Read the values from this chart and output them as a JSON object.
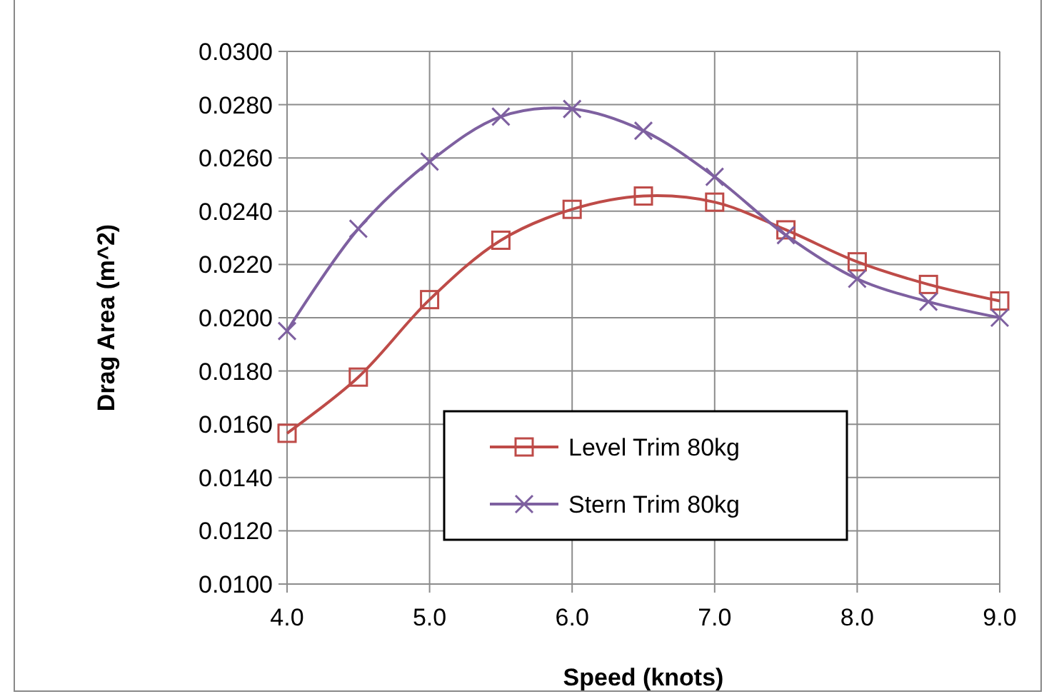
{
  "chart_data": {
    "type": "line",
    "xlabel": "Speed (knots)",
    "ylabel": "Drag Area (m^2)",
    "x": [
      4.0,
      4.5,
      5.0,
      5.5,
      6.0,
      6.5,
      7.0,
      7.5,
      8.0,
      8.5,
      9.0
    ],
    "series": [
      {
        "name": "Level Trim 80kg",
        "color": "#be4b48",
        "marker": "square",
        "values": [
          0.01566,
          0.01777,
          0.02068,
          0.02291,
          0.02407,
          0.02457,
          0.02434,
          0.0233,
          0.0221,
          0.02125,
          0.02063
        ]
      },
      {
        "name": "Stern Trim 80kg",
        "color": "#7e60a0",
        "marker": "cross",
        "values": [
          0.0195,
          0.02334,
          0.02586,
          0.02755,
          0.02784,
          0.02702,
          0.02529,
          0.0231,
          0.02146,
          0.0206,
          0.02
        ]
      }
    ],
    "xlim": [
      4.0,
      9.0
    ],
    "xticks": [
      {
        "value": 4,
        "label": "4.0"
      },
      {
        "value": 5,
        "label": "5.0"
      },
      {
        "value": 6,
        "label": "6.0"
      },
      {
        "value": 7,
        "label": "7.0"
      },
      {
        "value": 8,
        "label": "8.0"
      },
      {
        "value": 9,
        "label": "9.0"
      }
    ],
    "ylim": [
      0.01,
      0.03
    ],
    "yticks": [
      {
        "value": 0.01,
        "label": "0.0100"
      },
      {
        "value": 0.012,
        "label": "0.0120"
      },
      {
        "value": 0.014,
        "label": "0.0140"
      },
      {
        "value": 0.016,
        "label": "0.0160"
      },
      {
        "value": 0.018,
        "label": "0.0180"
      },
      {
        "value": 0.02,
        "label": "0.0200"
      },
      {
        "value": 0.022,
        "label": "0.0220"
      },
      {
        "value": 0.024,
        "label": "0.0240"
      },
      {
        "value": 0.026,
        "label": "0.0260"
      },
      {
        "value": 0.028,
        "label": "0.0280"
      },
      {
        "value": 0.03,
        "label": "0.0300"
      }
    ],
    "grid": true,
    "legend": "bottom right",
    "line_style": "solid"
  }
}
